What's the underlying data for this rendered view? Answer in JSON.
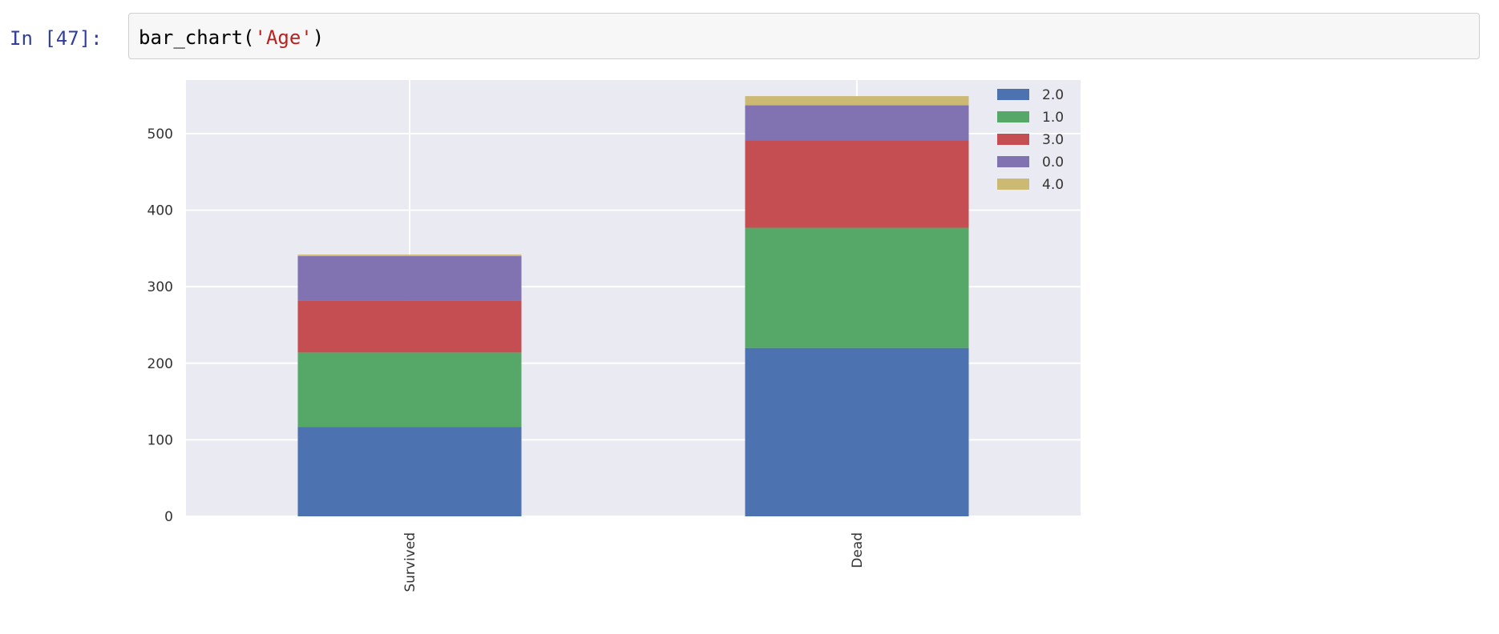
{
  "cell": {
    "prompt": "In [47]:",
    "code": {
      "func": "bar_chart(",
      "arg": "'Age'",
      "close": ")"
    }
  },
  "chart_data": {
    "type": "bar",
    "stacked": true,
    "categories": [
      "Survived",
      "Dead"
    ],
    "series": [
      {
        "name": "2.0",
        "color": "#4c72b0",
        "values": [
          117,
          220
        ]
      },
      {
        "name": "1.0",
        "color": "#55a868",
        "values": [
          97,
          157
        ]
      },
      {
        "name": "3.0",
        "color": "#c44e52",
        "values": [
          68,
          114
        ]
      },
      {
        "name": "0.0",
        "color": "#8172b2",
        "values": [
          58,
          46
        ]
      },
      {
        "name": "4.0",
        "color": "#ccb974",
        "values": [
          2,
          12
        ]
      }
    ],
    "ylim": [
      0,
      570
    ],
    "yticks": [
      0,
      100,
      200,
      300,
      400,
      500
    ],
    "grid": true,
    "legend_position": "top-right",
    "background": "#eaeaf2",
    "xlabel": "",
    "ylabel": "",
    "title": ""
  }
}
